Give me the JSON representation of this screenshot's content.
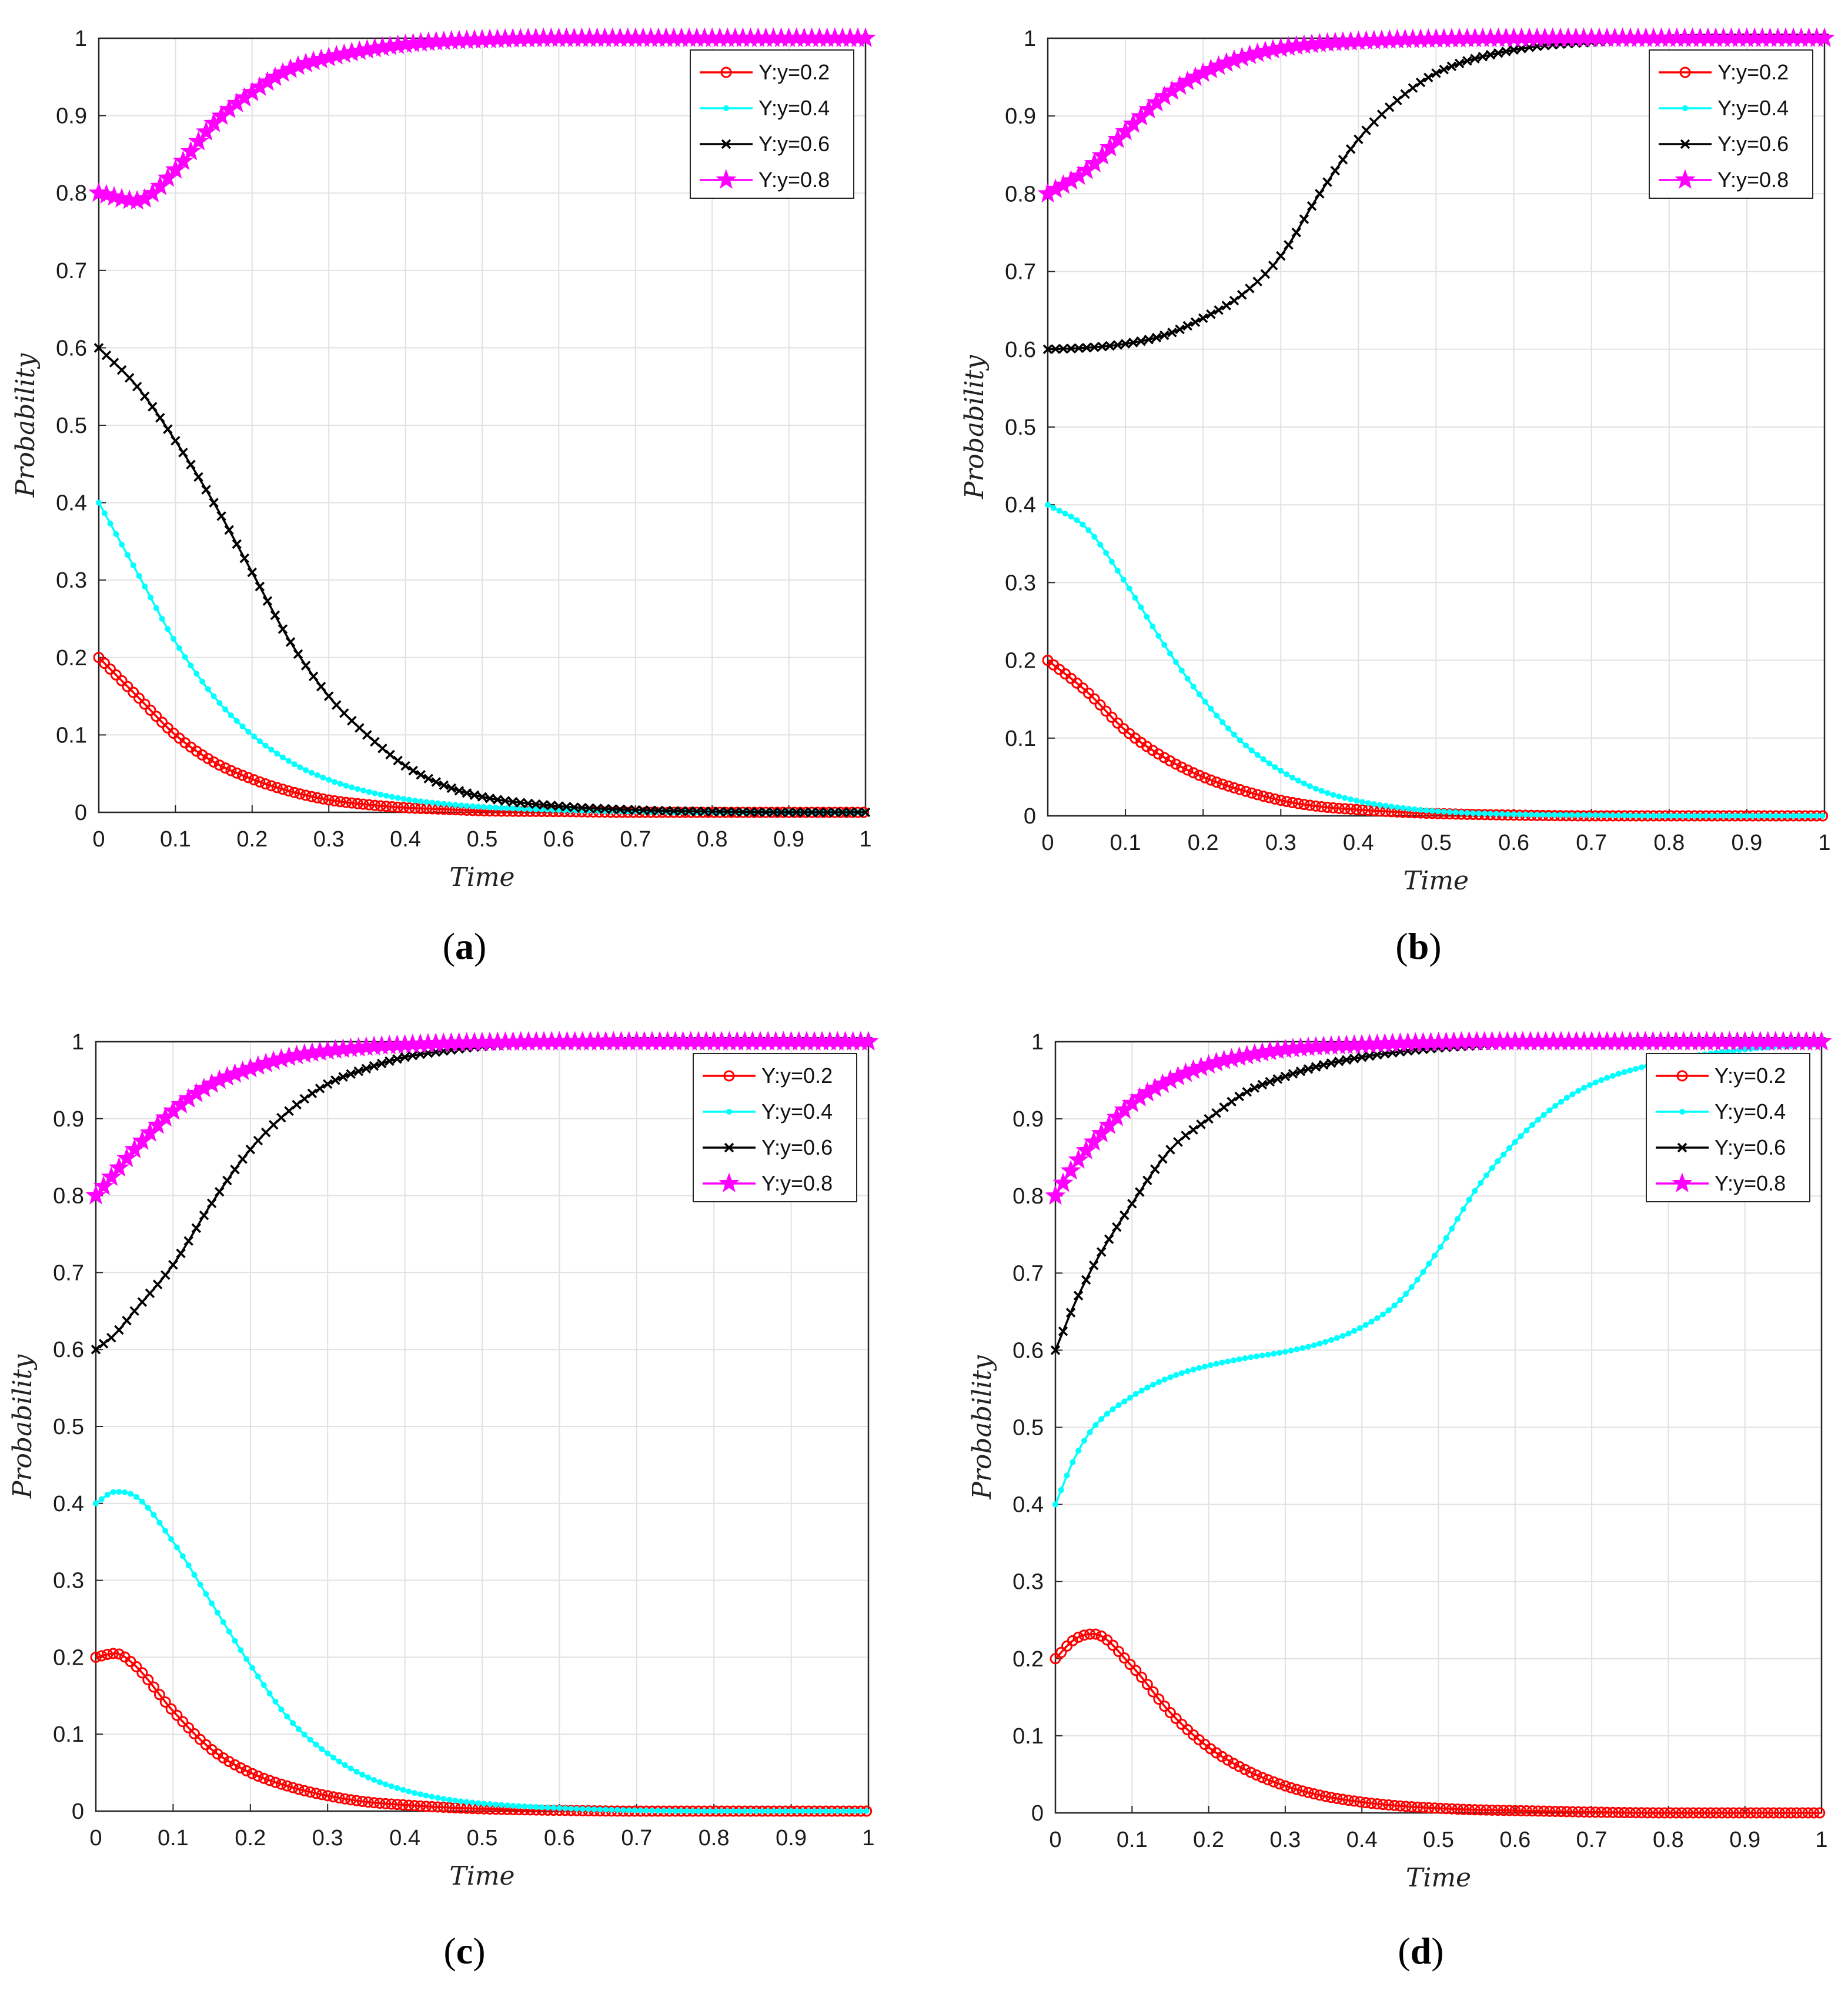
{
  "figure": {
    "panels": [
      "a",
      "b",
      "c",
      "d"
    ]
  },
  "colors": {
    "y02": "#ff0000",
    "y04": "#00ffff",
    "y06": "#000000",
    "y08": "#ff00ff",
    "grid": "#e1e1e1",
    "axis": "#262626"
  },
  "chart_data": [
    {
      "id": "a",
      "panel_label": "a",
      "type": "line",
      "xlabel": "Time",
      "ylabel": "Probability",
      "xlim": [
        0,
        1
      ],
      "ylim": [
        0,
        1
      ],
      "xticks": [
        "0",
        "0.1",
        "0.2",
        "0.3",
        "0.4",
        "0.5",
        "0.6",
        "0.7",
        "0.8",
        "0.9",
        "1"
      ],
      "yticks": [
        "0",
        "0.1",
        "0.2",
        "0.3",
        "0.4",
        "0.5",
        "0.6",
        "0.7",
        "0.8",
        "0.9",
        "1"
      ],
      "grid": true,
      "legend_position": "top-right",
      "x": [
        0,
        0.05,
        0.1,
        0.15,
        0.2,
        0.25,
        0.3,
        0.35,
        0.4,
        0.45,
        0.5,
        0.6,
        0.7,
        0.8,
        0.9,
        1.0
      ],
      "series": [
        {
          "name": "Y:y=0.2",
          "marker": "circle",
          "values": [
            0.2,
            0.15,
            0.1,
            0.065,
            0.043,
            0.027,
            0.016,
            0.01,
            0.006,
            0.004,
            0.002,
            0.001,
            0,
            0,
            0,
            0
          ]
        },
        {
          "name": "Y:y=0.4",
          "marker": "dot",
          "values": [
            0.4,
            0.31,
            0.22,
            0.15,
            0.1,
            0.065,
            0.042,
            0.027,
            0.017,
            0.011,
            0.007,
            0.003,
            0.001,
            0,
            0,
            0
          ]
        },
        {
          "name": "Y:y=0.6",
          "marker": "x",
          "values": [
            0.6,
            0.55,
            0.48,
            0.4,
            0.31,
            0.22,
            0.15,
            0.1,
            0.06,
            0.035,
            0.02,
            0.008,
            0.003,
            0.001,
            0,
            0
          ]
        },
        {
          "name": "Y:y=0.8",
          "marker": "star",
          "values": [
            0.8,
            0.79,
            0.83,
            0.89,
            0.93,
            0.96,
            0.975,
            0.985,
            0.992,
            0.996,
            0.998,
            1,
            1,
            1,
            1,
            1
          ]
        }
      ]
    },
    {
      "id": "b",
      "panel_label": "b",
      "type": "line",
      "xlabel": "Time",
      "ylabel": "Probability",
      "xlim": [
        0,
        1
      ],
      "ylim": [
        0,
        1
      ],
      "xticks": [
        "0",
        "0.1",
        "0.2",
        "0.3",
        "0.4",
        "0.5",
        "0.6",
        "0.7",
        "0.8",
        "0.9",
        "1"
      ],
      "yticks": [
        "0",
        "0.1",
        "0.2",
        "0.3",
        "0.4",
        "0.5",
        "0.6",
        "0.7",
        "0.8",
        "0.9",
        "1"
      ],
      "grid": true,
      "legend_position": "top-right",
      "x": [
        0,
        0.05,
        0.1,
        0.15,
        0.2,
        0.25,
        0.3,
        0.35,
        0.4,
        0.45,
        0.5,
        0.6,
        0.7,
        0.8,
        0.9,
        1.0
      ],
      "series": [
        {
          "name": "Y:y=0.2",
          "marker": "circle",
          "values": [
            0.2,
            0.16,
            0.11,
            0.075,
            0.05,
            0.033,
            0.02,
            0.012,
            0.008,
            0.005,
            0.003,
            0.001,
            0,
            0,
            0,
            0
          ]
        },
        {
          "name": "Y:y=0.4",
          "marker": "dot",
          "values": [
            0.4,
            0.37,
            0.3,
            0.22,
            0.15,
            0.095,
            0.058,
            0.033,
            0.019,
            0.011,
            0.006,
            0.002,
            0.001,
            0,
            0,
            0
          ]
        },
        {
          "name": "Y:y=0.6",
          "marker": "x",
          "values": [
            0.6,
            0.602,
            0.607,
            0.618,
            0.64,
            0.67,
            0.72,
            0.8,
            0.87,
            0.92,
            0.955,
            0.985,
            0.995,
            0.999,
            1,
            1
          ]
        },
        {
          "name": "Y:y=0.8",
          "marker": "star",
          "values": [
            0.8,
            0.83,
            0.88,
            0.925,
            0.955,
            0.975,
            0.987,
            0.993,
            0.996,
            0.998,
            0.999,
            1,
            1,
            1,
            1,
            1
          ]
        }
      ]
    },
    {
      "id": "c",
      "panel_label": "c",
      "type": "line",
      "xlabel": "Time",
      "ylabel": "Probability",
      "xlim": [
        0,
        1
      ],
      "ylim": [
        0,
        1
      ],
      "xticks": [
        "0",
        "0.1",
        "0.2",
        "0.3",
        "0.4",
        "0.5",
        "0.6",
        "0.7",
        "0.8",
        "0.9",
        "1"
      ],
      "yticks": [
        "0",
        "0.1",
        "0.2",
        "0.3",
        "0.4",
        "0.5",
        "0.6",
        "0.7",
        "0.8",
        "0.9",
        "1"
      ],
      "grid": true,
      "legend_position": "top-right",
      "x": [
        0,
        0.025,
        0.05,
        0.1,
        0.15,
        0.2,
        0.25,
        0.3,
        0.35,
        0.4,
        0.45,
        0.5,
        0.6,
        0.7,
        0.8,
        0.9,
        1.0
      ],
      "series": [
        {
          "name": "Y:y=0.2",
          "marker": "circle",
          "values": [
            0.2,
            0.205,
            0.19,
            0.13,
            0.08,
            0.05,
            0.032,
            0.02,
            0.012,
            0.008,
            0.005,
            0.003,
            0.001,
            0,
            0,
            0,
            0
          ]
        },
        {
          "name": "Y:y=0.4",
          "marker": "dot",
          "values": [
            0.4,
            0.415,
            0.41,
            0.35,
            0.27,
            0.19,
            0.12,
            0.075,
            0.045,
            0.027,
            0.016,
            0.01,
            0.004,
            0.001,
            0,
            0,
            0
          ]
        },
        {
          "name": "Y:y=0.6",
          "marker": "x",
          "values": [
            0.6,
            0.62,
            0.65,
            0.71,
            0.79,
            0.86,
            0.91,
            0.945,
            0.965,
            0.98,
            0.988,
            0.994,
            0.998,
            1,
            1,
            1,
            1
          ]
        },
        {
          "name": "Y:y=0.8",
          "marker": "star",
          "values": [
            0.8,
            0.83,
            0.86,
            0.91,
            0.945,
            0.965,
            0.98,
            0.988,
            0.993,
            0.996,
            0.998,
            0.999,
            1,
            1,
            1,
            1,
            1
          ]
        }
      ]
    },
    {
      "id": "d",
      "panel_label": "d",
      "type": "line",
      "xlabel": "Time",
      "ylabel": "Probability",
      "xlim": [
        0,
        1
      ],
      "ylim": [
        0,
        1
      ],
      "xticks": [
        "0",
        "0.1",
        "0.2",
        "0.3",
        "0.4",
        "0.5",
        "0.6",
        "0.7",
        "0.8",
        "0.9",
        "1"
      ],
      "yticks": [
        "0",
        "0.1",
        "0.2",
        "0.3",
        "0.4",
        "0.5",
        "0.6",
        "0.7",
        "0.8",
        "0.9",
        "1"
      ],
      "grid": true,
      "legend_position": "top-right",
      "x": [
        0,
        0.025,
        0.05,
        0.1,
        0.15,
        0.2,
        0.25,
        0.3,
        0.35,
        0.4,
        0.45,
        0.5,
        0.55,
        0.6,
        0.65,
        0.7,
        0.8,
        0.9,
        1.0
      ],
      "series": [
        {
          "name": "Y:y=0.2",
          "marker": "circle",
          "values": [
            0.2,
            0.225,
            0.232,
            0.19,
            0.13,
            0.085,
            0.055,
            0.035,
            0.022,
            0.014,
            0.009,
            0.006,
            0.004,
            0.003,
            0.002,
            0.001,
            0,
            0,
            0
          ]
        },
        {
          "name": "Y:y=0.4",
          "marker": "dot",
          "values": [
            0.4,
            0.46,
            0.5,
            0.54,
            0.565,
            0.58,
            0.59,
            0.598,
            0.61,
            0.63,
            0.665,
            0.73,
            0.81,
            0.87,
            0.915,
            0.945,
            0.975,
            0.99,
            0.997
          ]
        },
        {
          "name": "Y:y=0.6",
          "marker": "x",
          "values": [
            0.6,
            0.66,
            0.71,
            0.79,
            0.86,
            0.9,
            0.935,
            0.955,
            0.97,
            0.98,
            0.987,
            0.992,
            0.995,
            0.997,
            0.998,
            0.999,
            1,
            1,
            1
          ]
        },
        {
          "name": "Y:y=0.8",
          "marker": "star",
          "values": [
            0.8,
            0.84,
            0.87,
            0.92,
            0.95,
            0.97,
            0.982,
            0.99,
            0.994,
            0.996,
            0.998,
            0.999,
            1,
            1,
            1,
            1,
            1,
            1,
            1
          ]
        }
      ]
    }
  ]
}
